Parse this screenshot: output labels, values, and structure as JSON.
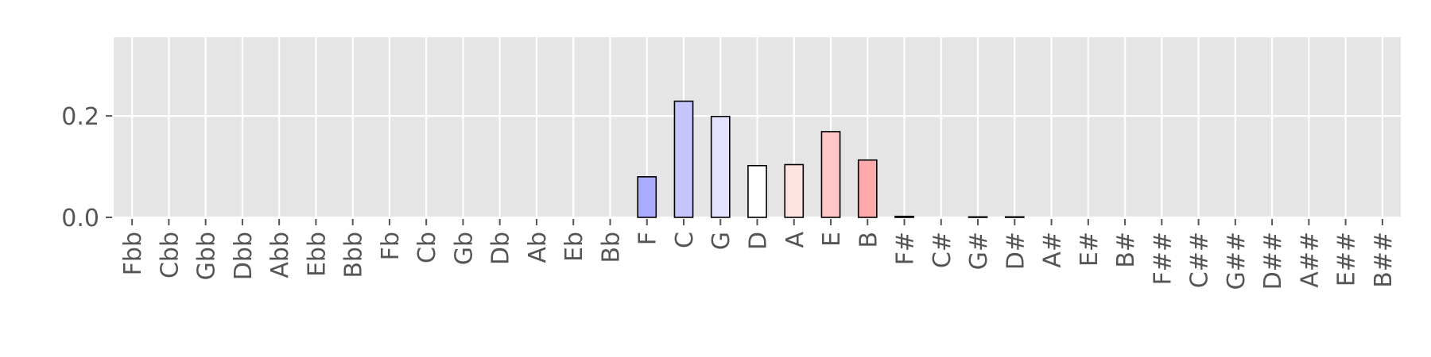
{
  "chart_data": {
    "type": "bar",
    "title": "",
    "xlabel": "",
    "ylabel": "",
    "ylim": [
      0,
      0.355
    ],
    "yticks": [
      0.0,
      0.2
    ],
    "ytick_labels": [
      "0.0",
      "0.2"
    ],
    "grid": true,
    "background_color": "#e5e5e5",
    "categories": [
      "Fbb",
      "Cbb",
      "Gbb",
      "Dbb",
      "Abb",
      "Ebb",
      "Bbb",
      "Fb",
      "Cb",
      "Gb",
      "Db",
      "Ab",
      "Eb",
      "Bb",
      "F",
      "C",
      "G",
      "D",
      "A",
      "E",
      "B",
      "F#",
      "C#",
      "G#",
      "D#",
      "A#",
      "E#",
      "B#",
      "F##",
      "C##",
      "G##",
      "D##",
      "A##",
      "E##",
      "B##"
    ],
    "values": [
      0,
      0,
      0,
      0,
      0,
      0,
      0,
      0,
      0,
      0,
      0,
      0,
      0,
      0,
      0.08,
      0.229,
      0.199,
      0.102,
      0.104,
      0.169,
      0.113,
      0.002,
      0,
      0.001,
      0.001,
      0,
      0,
      0,
      0,
      0,
      0,
      0,
      0,
      0,
      0
    ],
    "colors": [
      "#aaaaff",
      "#aaaaff",
      "#aaaaff",
      "#aaaaff",
      "#aaaaff",
      "#aaaaff",
      "#aaaaff",
      "#aaaaff",
      "#aaaaff",
      "#aaaaff",
      "#aaaaff",
      "#aaaaff",
      "#aaaaff",
      "#aaaaff",
      "#aaaaff",
      "#c6c6ff",
      "#e2e2ff",
      "#ffffff",
      "#ffe2e2",
      "#ffc6c6",
      "#ffaaaa",
      "#ffaaaa",
      "#ffaaaa",
      "#ffaaaa",
      "#ffaaaa",
      "#ffaaaa",
      "#ffaaaa",
      "#ffaaaa",
      "#ffaaaa",
      "#ffaaaa",
      "#ffaaaa",
      "#ffaaaa",
      "#ffaaaa",
      "#ffaaaa",
      "#ffaaaa"
    ]
  }
}
